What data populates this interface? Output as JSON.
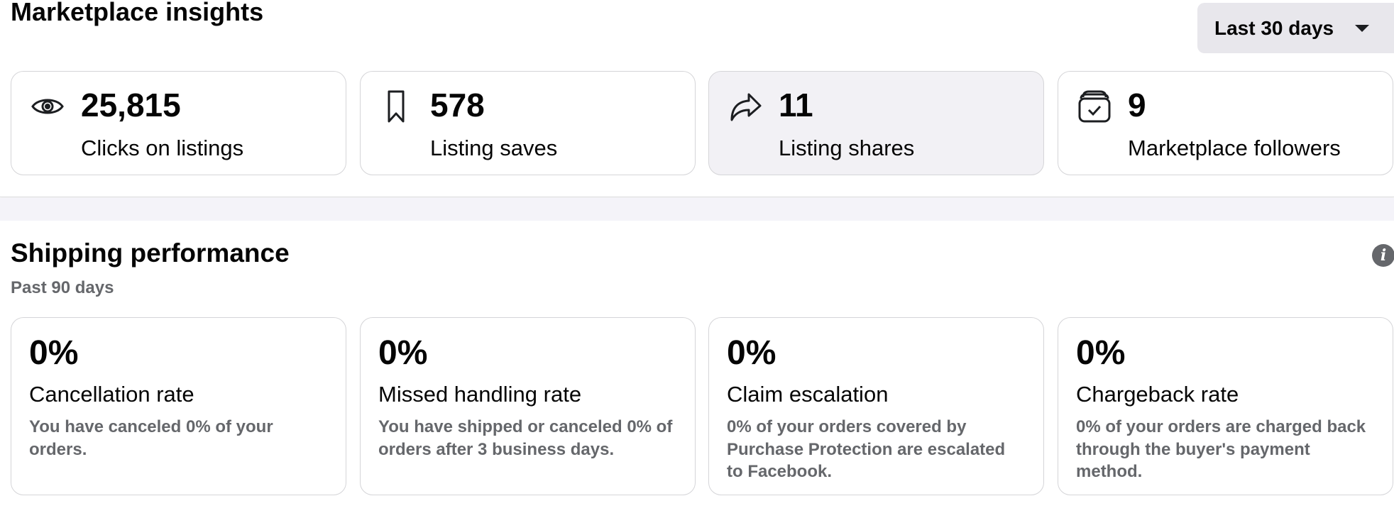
{
  "insights": {
    "title": "Marketplace insights",
    "range_label": "Last 30 days",
    "stats": [
      {
        "icon": "eye-icon",
        "value": "25,815",
        "label": "Clicks on listings"
      },
      {
        "icon": "bookmark-icon",
        "value": "578",
        "label": "Listing saves"
      },
      {
        "icon": "share-icon",
        "value": "11",
        "label": "Listing shares"
      },
      {
        "icon": "followers-box-icon",
        "value": "9",
        "label": "Marketplace followers"
      }
    ]
  },
  "shipping": {
    "title": "Shipping performance",
    "subtitle": "Past 90 days",
    "info_icon": "i",
    "metrics": [
      {
        "value": "0%",
        "name": "Cancellation rate",
        "desc": "You have canceled 0% of your orders."
      },
      {
        "value": "0%",
        "name": "Missed handling rate",
        "desc": "You have shipped or canceled 0% of orders after 3 business days."
      },
      {
        "value": "0%",
        "name": "Claim escalation",
        "desc": "0% of your orders covered by Purchase Protection are escalated to Facebook."
      },
      {
        "value": "0%",
        "name": "Chargeback rate",
        "desc": "0% of your orders are charged back through the buyer's payment method."
      }
    ]
  }
}
